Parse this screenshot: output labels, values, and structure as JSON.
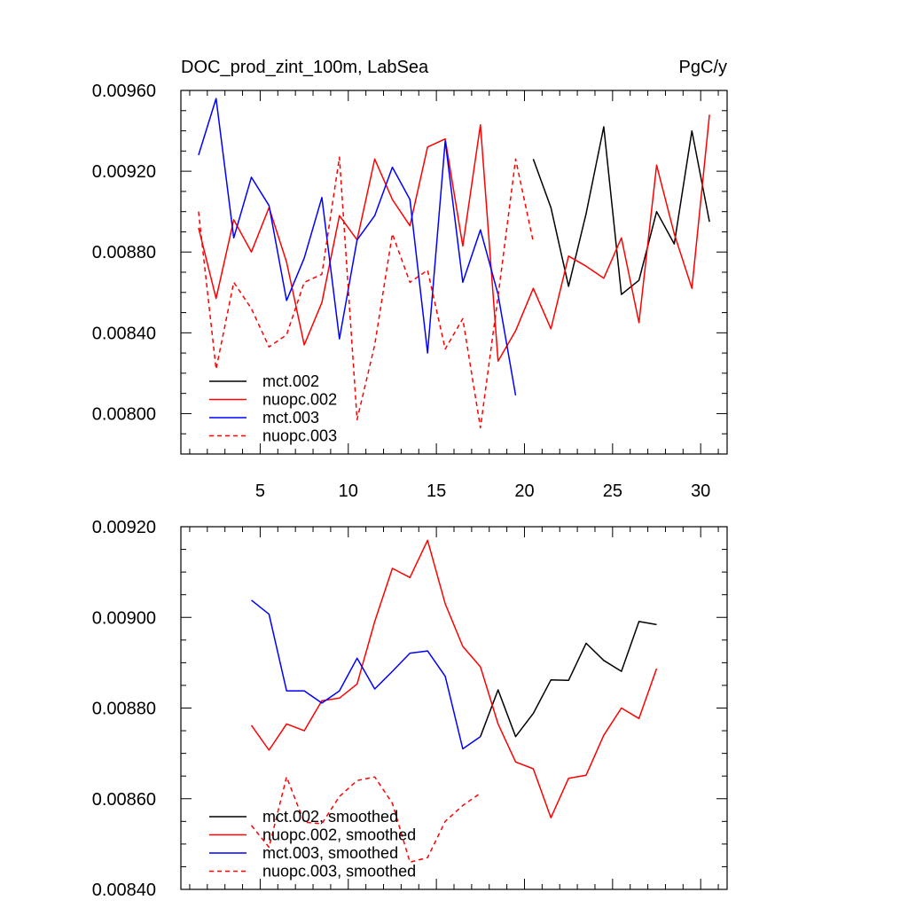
{
  "chart_data": [
    {
      "type": "line",
      "title": "DOC_prod_zint_100m, LabSea",
      "units": "PgC/y",
      "xlabel": "",
      "ylabel": "",
      "xlim": [
        0.5,
        31.5
      ],
      "ylim": [
        0.0078,
        0.0096
      ],
      "x_ticks": [
        5,
        10,
        15,
        20,
        25,
        30
      ],
      "x_tick_labels": [
        "5",
        "10",
        "15",
        "20",
        "25",
        "30"
      ],
      "y_ticks": [
        0.008,
        0.0084,
        0.0088,
        0.0092,
        0.0096
      ],
      "y_tick_labels": [
        "0.00800",
        "0.00840",
        "0.00880",
        "0.00920",
        "0.00960"
      ],
      "legend_position": "bottom-left",
      "series": [
        {
          "name": "mct.002",
          "color": "#000000",
          "dash": "solid",
          "x": [
            20.5,
            21.5,
            22.5,
            23.5,
            24.5,
            25.5,
            26.5,
            27.5,
            28.5,
            29.5,
            30.5
          ],
          "y": [
            0.00926,
            0.00902,
            0.00863,
            0.00899,
            0.00942,
            0.00859,
            0.00866,
            0.009,
            0.00884,
            0.0094,
            0.00895
          ]
        },
        {
          "name": "nuopc.002",
          "color": "#ff0000",
          "dash": "solid",
          "x": [
            1.5,
            2.5,
            3.5,
            4.5,
            5.5,
            6.5,
            7.5,
            8.5,
            9.5,
            10.5,
            11.5,
            12.5,
            13.5,
            14.5,
            15.5,
            16.5,
            17.5,
            18.5,
            19.5,
            20.5,
            21.5,
            22.5,
            23.5,
            24.5,
            25.5,
            26.5,
            27.5,
            28.5,
            29.5,
            30.5
          ],
          "y": [
            0.00892,
            0.00857,
            0.00896,
            0.0088,
            0.00902,
            0.00875,
            0.00834,
            0.00855,
            0.00898,
            0.00886,
            0.00926,
            0.00906,
            0.00893,
            0.00932,
            0.00936,
            0.00883,
            0.00943,
            0.00826,
            0.00841,
            0.00862,
            0.00842,
            0.00878,
            0.00873,
            0.00867,
            0.00887,
            0.00845,
            0.00923,
            0.00889,
            0.00862,
            0.00948
          ]
        },
        {
          "name": "mct.003",
          "color": "#0000ff",
          "dash": "solid",
          "x": [
            1.5,
            2.5,
            3.5,
            4.5,
            5.5,
            6.5,
            7.5,
            8.5,
            9.5,
            10.5,
            11.5,
            12.5,
            13.5,
            14.5,
            15.5,
            16.5,
            17.5,
            18.5,
            19.5
          ],
          "y": [
            0.00928,
            0.00956,
            0.00887,
            0.00917,
            0.00903,
            0.00856,
            0.00877,
            0.00907,
            0.00837,
            0.00886,
            0.00898,
            0.00922,
            0.00906,
            0.0083,
            0.00935,
            0.00865,
            0.00891,
            0.00859,
            0.00809
          ]
        },
        {
          "name": "nuopc.003",
          "color": "#ff0000",
          "dash": "dashed",
          "x": [
            1.5,
            2.5,
            3.5,
            4.5,
            5.5,
            6.5,
            7.5,
            8.5,
            9.5,
            10.5,
            11.5,
            12.5,
            13.5,
            14.5,
            15.5,
            16.5,
            17.5,
            18.5,
            19.5,
            20.5
          ],
          "y": [
            0.009,
            0.00822,
            0.00865,
            0.00852,
            0.00833,
            0.00839,
            0.00865,
            0.00869,
            0.00927,
            0.00797,
            0.00834,
            0.00889,
            0.00865,
            0.00871,
            0.00832,
            0.00847,
            0.00793,
            0.00858,
            0.00926,
            0.00885
          ]
        }
      ]
    },
    {
      "type": "line",
      "title": "",
      "xlabel": "",
      "ylabel": "",
      "xlim": [
        0.5,
        31.5
      ],
      "ylim": [
        0.0084,
        0.0092
      ],
      "x_ticks": [
        5,
        10,
        15,
        20,
        25,
        30
      ],
      "x_tick_labels": [],
      "y_ticks": [
        0.0084,
        0.0086,
        0.0088,
        0.009,
        0.0092
      ],
      "y_tick_labels": [
        "0.00840",
        "0.00860",
        "0.00880",
        "0.00900",
        "0.00920"
      ],
      "legend_position": "bottom-left",
      "series": [
        {
          "name": "mct.002, smoothed",
          "color": "#000000",
          "dash": "solid",
          "x": [
            17.5,
            18.5,
            19.5,
            20.5,
            21.5,
            22.5,
            23.5,
            24.5,
            25.5,
            26.5,
            27.5
          ],
          "y": [
            0.008737,
            0.00884,
            0.008737,
            0.008788,
            0.008862,
            0.008861,
            0.008943,
            0.008905,
            0.008881,
            0.008991,
            0.008984
          ]
        },
        {
          "name": "nuopc.002, smoothed",
          "color": "#ff0000",
          "dash": "solid",
          "x": [
            4.5,
            5.5,
            6.5,
            7.5,
            8.5,
            9.5,
            10.5,
            11.5,
            12.5,
            13.5,
            14.5,
            15.5,
            16.5,
            17.5,
            18.5,
            19.5,
            20.5,
            21.5,
            22.5,
            23.5,
            24.5,
            25.5,
            26.5,
            27.5
          ],
          "y": [
            0.008762,
            0.008707,
            0.008765,
            0.00875,
            0.008816,
            0.008822,
            0.008853,
            0.008991,
            0.009108,
            0.009088,
            0.00917,
            0.00903,
            0.008936,
            0.008891,
            0.008765,
            0.008681,
            0.008666,
            0.008558,
            0.008645,
            0.008652,
            0.00874,
            0.0088,
            0.008777,
            0.008887
          ]
        },
        {
          "name": "mct.003, smoothed",
          "color": "#0000ff",
          "dash": "solid",
          "x": [
            4.5,
            5.5,
            6.5,
            7.5,
            8.5,
            9.5,
            10.5,
            11.5,
            12.5,
            13.5,
            14.5,
            15.5,
            16.5,
            17.5
          ],
          "y": [
            0.009038,
            0.009007,
            0.008838,
            0.008838,
            0.008811,
            0.008838,
            0.00891,
            0.008842,
            0.008881,
            0.008921,
            0.008926,
            0.00887,
            0.00871,
            0.008737
          ]
        },
        {
          "name": "nuopc.003, smoothed",
          "color": "#ff0000",
          "dash": "dashed",
          "x": [
            4.5,
            5.5,
            6.5,
            7.5,
            8.5,
            9.5,
            10.5,
            11.5,
            12.5,
            13.5,
            14.5,
            15.5,
            16.5,
            17.5
          ],
          "y": [
            0.008541,
            0.008493,
            0.008648,
            0.008548,
            0.008545,
            0.008605,
            0.00864,
            0.008648,
            0.00859,
            0.00846,
            0.00847,
            0.00855,
            0.008585,
            0.008612
          ]
        }
      ]
    }
  ]
}
